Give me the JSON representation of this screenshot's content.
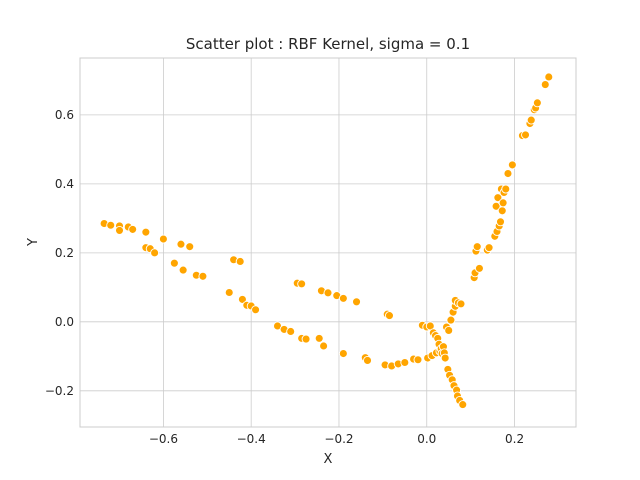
{
  "chart_data": {
    "type": "scatter",
    "title": "Scatter plot : RBF Kernel, sigma = 0.1",
    "xlabel": "X",
    "ylabel": "Y",
    "xlim": [
      -0.79,
      0.34
    ],
    "ylim": [
      -0.305,
      0.765
    ],
    "xticks": [
      -0.6,
      -0.4,
      -0.2,
      0.0,
      0.2
    ],
    "xtick_labels": [
      "−0.6",
      "−0.4",
      "−0.2",
      "0.0",
      "0.2"
    ],
    "yticks": [
      -0.2,
      0.0,
      0.2,
      0.4,
      0.6
    ],
    "ytick_labels": [
      "−0.2",
      "0.0",
      "0.2",
      "0.4",
      "0.6"
    ],
    "grid": true,
    "color": "#ffa500",
    "points": [
      [
        -0.735,
        0.285
      ],
      [
        -0.72,
        0.28
      ],
      [
        -0.7,
        0.278
      ],
      [
        -0.7,
        0.265
      ],
      [
        -0.68,
        0.275
      ],
      [
        -0.67,
        0.268
      ],
      [
        -0.64,
        0.26
      ],
      [
        -0.64,
        0.215
      ],
      [
        -0.63,
        0.212
      ],
      [
        -0.62,
        0.2
      ],
      [
        -0.6,
        0.24
      ],
      [
        -0.575,
        0.17
      ],
      [
        -0.56,
        0.225
      ],
      [
        -0.555,
        0.15
      ],
      [
        -0.54,
        0.218
      ],
      [
        -0.525,
        0.135
      ],
      [
        -0.51,
        0.132
      ],
      [
        -0.45,
        0.085
      ],
      [
        -0.44,
        0.18
      ],
      [
        -0.425,
        0.175
      ],
      [
        -0.42,
        0.065
      ],
      [
        -0.41,
        0.048
      ],
      [
        -0.4,
        0.046
      ],
      [
        -0.39,
        0.035
      ],
      [
        -0.34,
        -0.012
      ],
      [
        -0.325,
        -0.022
      ],
      [
        -0.31,
        -0.028
      ],
      [
        -0.295,
        0.112
      ],
      [
        -0.285,
        0.11
      ],
      [
        -0.285,
        -0.048
      ],
      [
        -0.275,
        -0.05
      ],
      [
        -0.245,
        -0.048
      ],
      [
        -0.24,
        0.09
      ],
      [
        -0.235,
        -0.07
      ],
      [
        -0.225,
        0.084
      ],
      [
        -0.205,
        0.076
      ],
      [
        -0.19,
        0.068
      ],
      [
        -0.19,
        -0.092
      ],
      [
        -0.16,
        0.058
      ],
      [
        -0.14,
        -0.104
      ],
      [
        -0.135,
        -0.112
      ],
      [
        -0.095,
        -0.125
      ],
      [
        -0.09,
        0.022
      ],
      [
        -0.085,
        0.018
      ],
      [
        -0.08,
        -0.128
      ],
      [
        -0.065,
        -0.122
      ],
      [
        -0.05,
        -0.118
      ],
      [
        -0.03,
        -0.108
      ],
      [
        -0.02,
        -0.11
      ],
      [
        -0.01,
        -0.01
      ],
      [
        0.0,
        -0.015
      ],
      [
        0.002,
        -0.105
      ],
      [
        0.008,
        -0.012
      ],
      [
        0.012,
        -0.098
      ],
      [
        0.015,
        -0.032
      ],
      [
        0.02,
        -0.04
      ],
      [
        0.022,
        -0.09
      ],
      [
        0.025,
        -0.048
      ],
      [
        0.028,
        -0.065
      ],
      [
        0.03,
        -0.085
      ],
      [
        0.033,
        -0.078
      ],
      [
        0.035,
        -0.092
      ],
      [
        0.038,
        -0.072
      ],
      [
        0.04,
        -0.09
      ],
      [
        0.042,
        -0.105
      ],
      [
        0.045,
        -0.015
      ],
      [
        0.048,
        -0.138
      ],
      [
        0.05,
        -0.025
      ],
      [
        0.052,
        -0.155
      ],
      [
        0.055,
        0.005
      ],
      [
        0.058,
        -0.168
      ],
      [
        0.06,
        0.028
      ],
      [
        0.062,
        -0.185
      ],
      [
        0.065,
        0.045
      ],
      [
        0.065,
        0.062
      ],
      [
        0.068,
        -0.198
      ],
      [
        0.07,
        -0.215
      ],
      [
        0.072,
        0.055
      ],
      [
        0.075,
        -0.228
      ],
      [
        0.078,
        0.052
      ],
      [
        0.082,
        -0.24
      ],
      [
        0.108,
        0.128
      ],
      [
        0.11,
        0.142
      ],
      [
        0.112,
        0.205
      ],
      [
        0.115,
        0.218
      ],
      [
        0.12,
        0.155
      ],
      [
        0.138,
        0.208
      ],
      [
        0.142,
        0.215
      ],
      [
        0.155,
        0.248
      ],
      [
        0.158,
        0.335
      ],
      [
        0.16,
        0.262
      ],
      [
        0.162,
        0.36
      ],
      [
        0.165,
        0.278
      ],
      [
        0.168,
        0.29
      ],
      [
        0.17,
        0.385
      ],
      [
        0.172,
        0.322
      ],
      [
        0.174,
        0.345
      ],
      [
        0.176,
        0.375
      ],
      [
        0.18,
        0.385
      ],
      [
        0.185,
        0.43
      ],
      [
        0.195,
        0.455
      ],
      [
        0.218,
        0.54
      ],
      [
        0.225,
        0.542
      ],
      [
        0.235,
        0.575
      ],
      [
        0.238,
        0.585
      ],
      [
        0.245,
        0.615
      ],
      [
        0.248,
        0.62
      ],
      [
        0.252,
        0.635
      ],
      [
        0.27,
        0.688
      ],
      [
        0.278,
        0.71
      ]
    ]
  }
}
